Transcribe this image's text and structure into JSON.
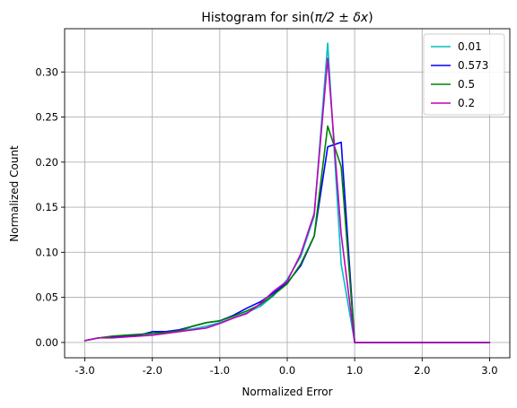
{
  "chart_data": {
    "type": "line",
    "title_prefix": "Histogram for sin(",
    "title_math": "π/2 ± δx",
    "title_suffix": ")",
    "xlabel": "Normalized Error",
    "ylabel": "Normalized Count",
    "xlim": [
      -3.3,
      3.3
    ],
    "ylim": [
      -0.017,
      0.348
    ],
    "x_ticks": [
      -3,
      -2,
      -1,
      0,
      1,
      2,
      3
    ],
    "x_tick_labels": [
      "-3.0",
      "-2.0",
      "-1.0",
      "0.0",
      "1.0",
      "2.0",
      "3.0"
    ],
    "y_ticks": [
      0,
      0.05,
      0.1,
      0.15,
      0.2,
      0.25,
      0.3
    ],
    "y_tick_labels": [
      "0.00",
      "0.05",
      "0.10",
      "0.15",
      "0.20",
      "0.25",
      "0.30"
    ],
    "grid": true,
    "legend_position": "top-right",
    "series": [
      {
        "name": "0.01",
        "color": "#00bfbf",
        "x": [
          -3.0,
          -2.8,
          -2.6,
          -2.4,
          -2.2,
          -2.0,
          -1.8,
          -1.6,
          -1.4,
          -1.2,
          -1.0,
          -0.8,
          -0.6,
          -0.4,
          -0.2,
          0.0,
          0.2,
          0.4,
          0.6,
          0.8,
          1.0,
          1.2,
          1.4,
          1.6,
          1.8,
          2.0,
          2.2,
          2.4,
          2.6,
          2.8,
          3.0
        ],
        "y": [
          0.002,
          0.005,
          0.006,
          0.007,
          0.008,
          0.01,
          0.011,
          0.013,
          0.015,
          0.018,
          0.022,
          0.027,
          0.033,
          0.04,
          0.052,
          0.07,
          0.095,
          0.14,
          0.332,
          0.087,
          0.0,
          0.0,
          0.0,
          0.0,
          0.0,
          0.0,
          0.0,
          0.0,
          0.0,
          0.0,
          0.0
        ]
      },
      {
        "name": "0.573",
        "color": "#0000ff",
        "x": [
          -3.0,
          -2.8,
          -2.6,
          -2.4,
          -2.2,
          -2.0,
          -1.8,
          -1.6,
          -1.4,
          -1.2,
          -1.0,
          -0.8,
          -0.6,
          -0.4,
          -0.2,
          0.0,
          0.2,
          0.4,
          0.6,
          0.8,
          1.0,
          1.2,
          1.4,
          1.6,
          1.8,
          2.0,
          2.2,
          2.4,
          2.6,
          2.8,
          3.0
        ],
        "y": [
          0.002,
          0.005,
          0.006,
          0.007,
          0.008,
          0.012,
          0.012,
          0.014,
          0.018,
          0.022,
          0.024,
          0.03,
          0.038,
          0.045,
          0.055,
          0.066,
          0.085,
          0.118,
          0.217,
          0.222,
          0.0,
          0.0,
          0.0,
          0.0,
          0.0,
          0.0,
          0.0,
          0.0,
          0.0,
          0.0,
          0.0
        ]
      },
      {
        "name": "0.5",
        "color": "#008000",
        "x": [
          -3.0,
          -2.8,
          -2.6,
          -2.4,
          -2.2,
          -2.0,
          -1.8,
          -1.6,
          -1.4,
          -1.2,
          -1.0,
          -0.8,
          -0.6,
          -0.4,
          -0.2,
          0.0,
          0.2,
          0.4,
          0.6,
          0.8,
          1.0,
          1.2,
          1.4,
          1.6,
          1.8,
          2.0,
          2.2,
          2.4,
          2.6,
          2.8,
          3.0
        ],
        "y": [
          0.002,
          0.005,
          0.007,
          0.008,
          0.009,
          0.01,
          0.011,
          0.013,
          0.018,
          0.022,
          0.024,
          0.029,
          0.035,
          0.042,
          0.053,
          0.065,
          0.087,
          0.118,
          0.24,
          0.195,
          0.0,
          0.0,
          0.0,
          0.0,
          0.0,
          0.0,
          0.0,
          0.0,
          0.0,
          0.0,
          0.0
        ]
      },
      {
        "name": "0.2",
        "color": "#bf00bf",
        "x": [
          -3.0,
          -2.8,
          -2.6,
          -2.4,
          -2.2,
          -2.0,
          -1.8,
          -1.6,
          -1.4,
          -1.2,
          -1.0,
          -0.8,
          -0.6,
          -0.4,
          -0.2,
          0.0,
          0.2,
          0.4,
          0.6,
          0.8,
          1.0,
          1.2,
          1.4,
          1.6,
          1.8,
          2.0,
          2.2,
          2.4,
          2.6,
          2.8,
          3.0
        ],
        "y": [
          0.002,
          0.005,
          0.005,
          0.006,
          0.007,
          0.008,
          0.01,
          0.012,
          0.014,
          0.016,
          0.021,
          0.027,
          0.032,
          0.043,
          0.057,
          0.068,
          0.098,
          0.143,
          0.315,
          0.12,
          0.0,
          0.0,
          0.0,
          0.0,
          0.0,
          0.0,
          0.0,
          0.0,
          0.0,
          0.0,
          0.0
        ]
      }
    ]
  }
}
